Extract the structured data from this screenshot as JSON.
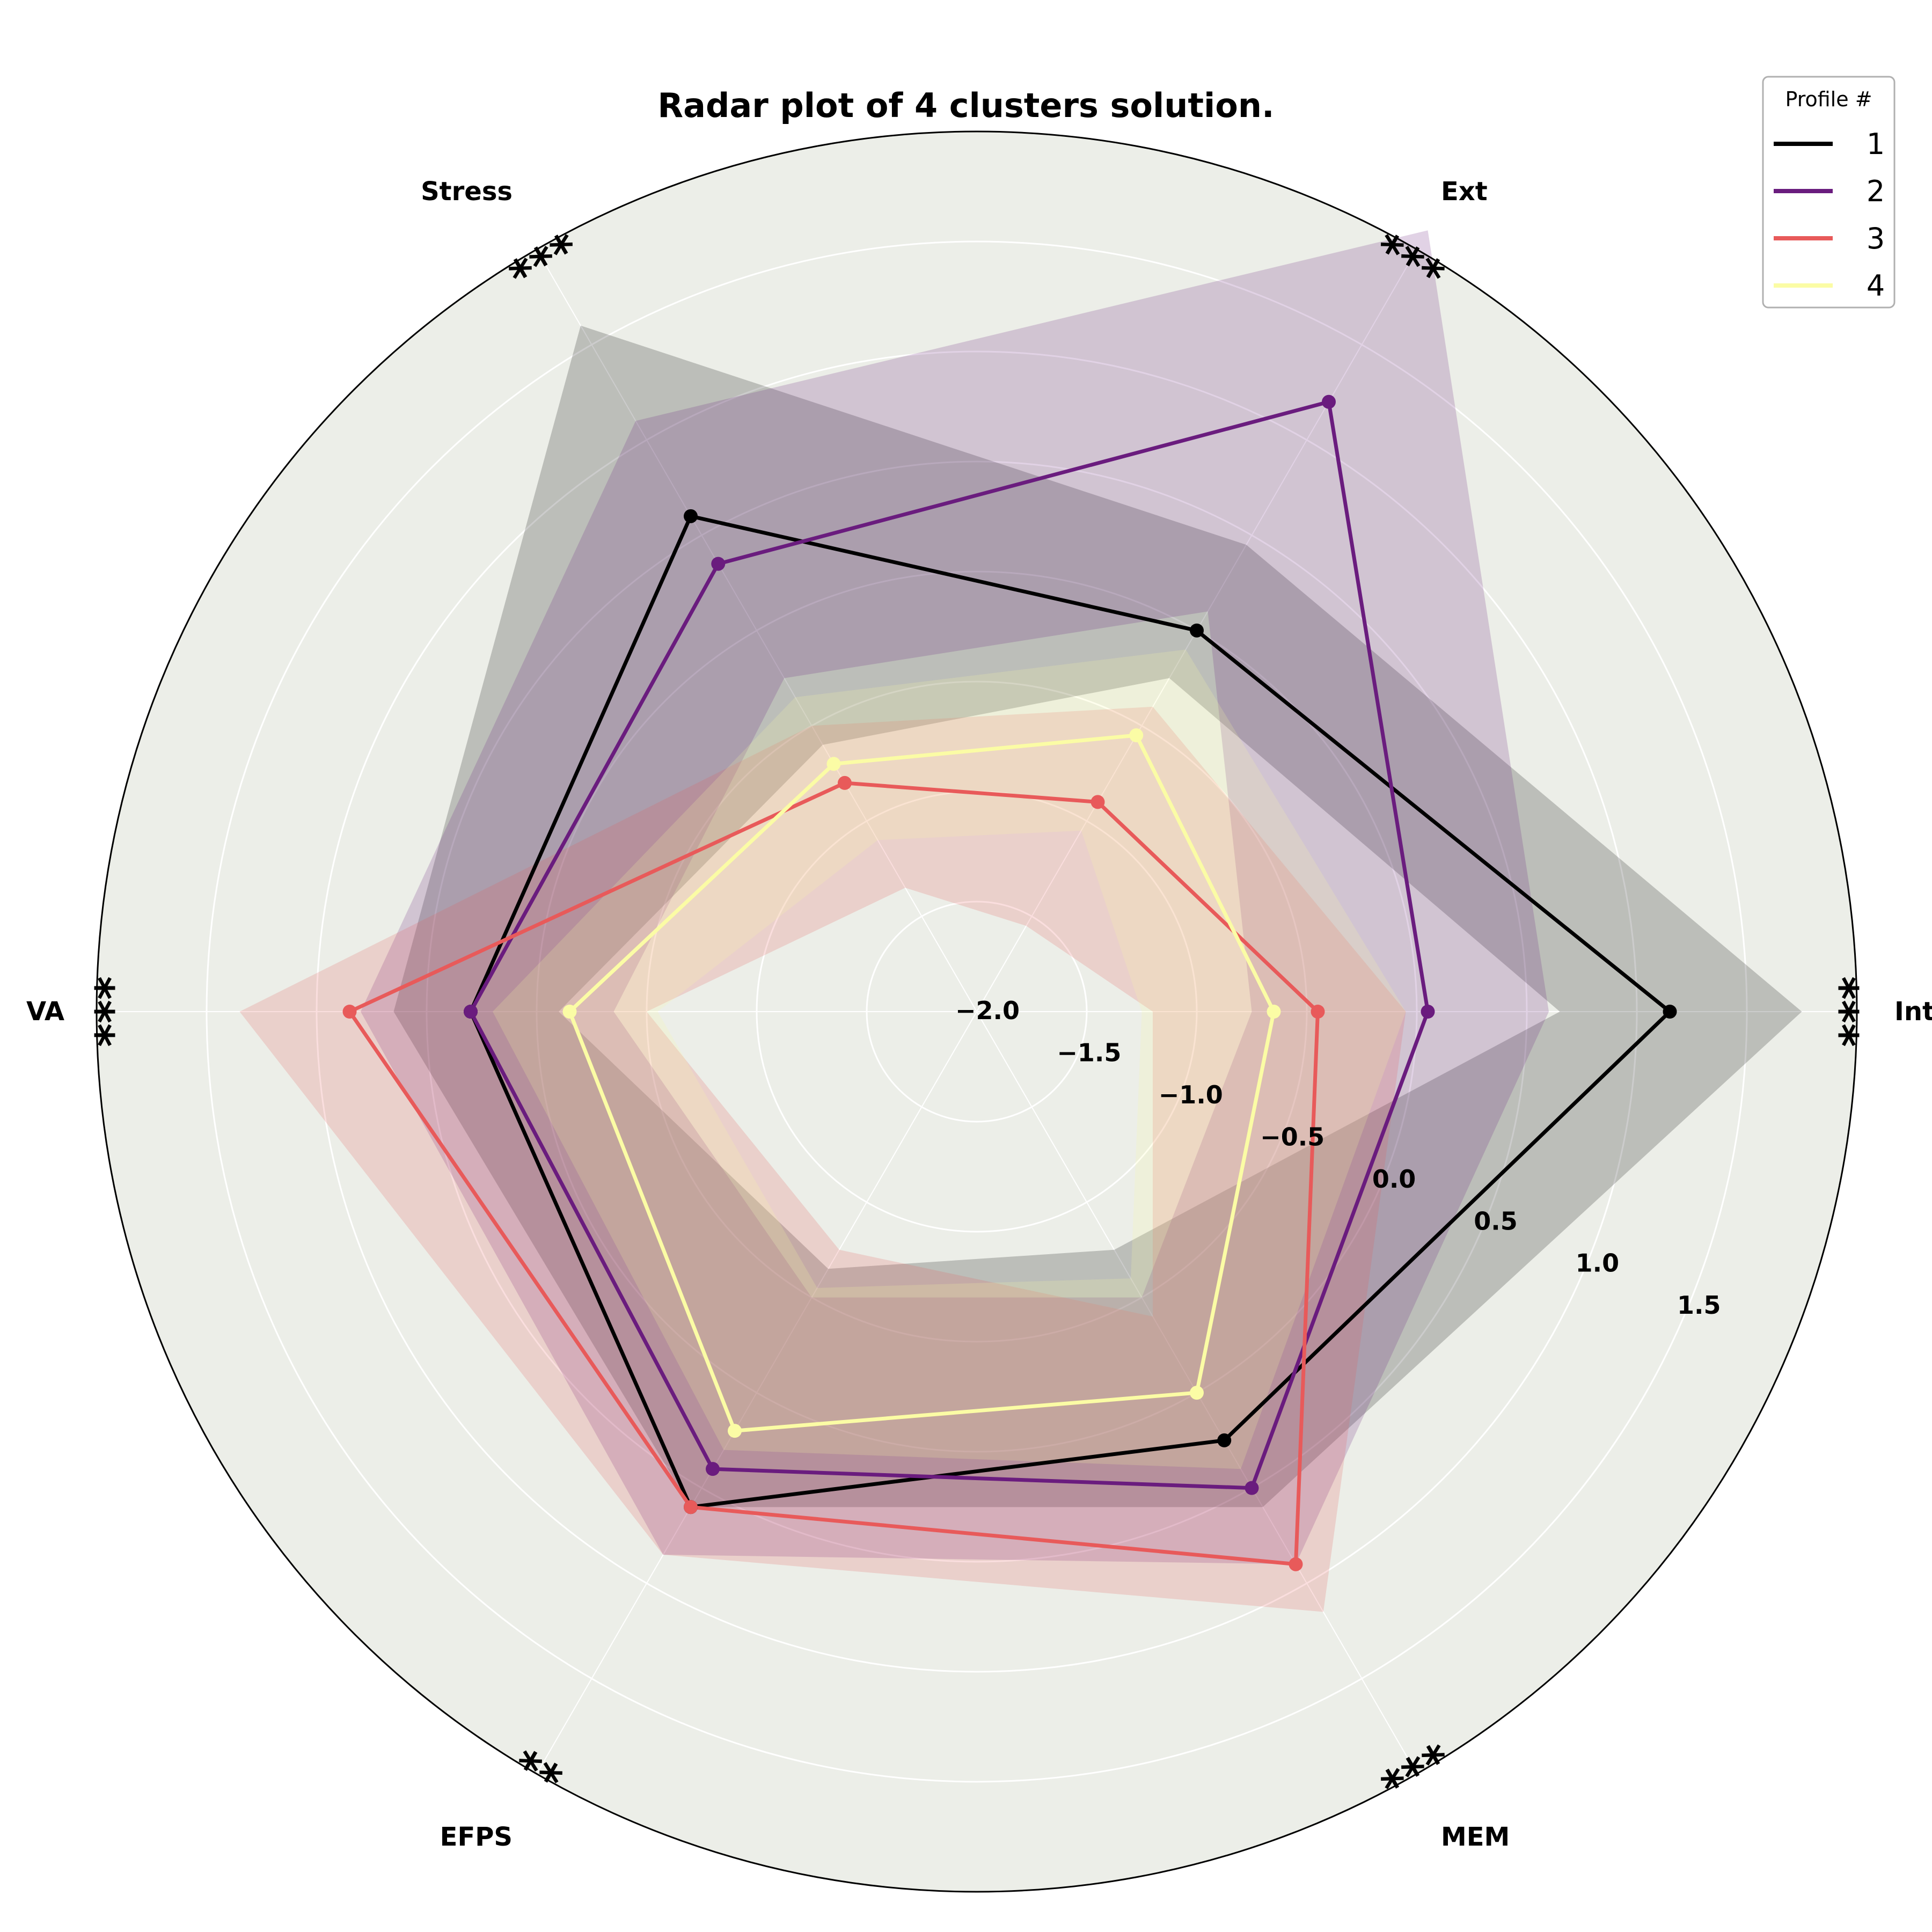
{
  "chart_data": {
    "type": "radar",
    "title": "Radar plot of 4 clusters solution.",
    "axes": [
      "Int",
      "Ext",
      "Stress",
      "VA",
      "EFPS",
      "MEM"
    ],
    "significance": [
      "***",
      "***",
      "***",
      "***",
      "**",
      "***"
    ],
    "r_ticks": [
      "−2.0",
      "−1.5",
      "−1.0",
      "−0.5",
      "0.0",
      "0.5",
      "1.0",
      "1.5"
    ],
    "r_tick_values": [
      -2.0,
      -1.5,
      -1.0,
      -0.5,
      0.0,
      0.5,
      1.0,
      1.5
    ],
    "rlim": [
      -2.0,
      2.0
    ],
    "grid": true,
    "legend": {
      "title": "Profile #",
      "position": "top-right"
    },
    "background_color": "#eceee8",
    "series": [
      {
        "name": "1",
        "color": "#000000",
        "values": [
          1.15,
          0.0,
          0.6,
          0.3,
          0.6,
          0.25
        ],
        "lower": [
          0.65,
          -0.25,
          -0.6,
          -0.1,
          -0.65,
          -0.75
        ],
        "upper": [
          1.75,
          0.45,
          1.6,
          0.65,
          0.6,
          0.6
        ]
      },
      {
        "name": "2",
        "color": "#6a1c7e",
        "values": [
          0.05,
          1.2,
          0.35,
          0.3,
          0.4,
          0.5
        ],
        "lower": [
          -0.75,
          0.1,
          -0.25,
          -0.35,
          -0.5,
          -0.5
        ],
        "upper": [
          0.6,
          2.1,
          1.1,
          0.8,
          0.85,
          0.9
        ]
      },
      {
        "name": "3",
        "color": "#e85a5a",
        "values": [
          -0.45,
          -0.9,
          -0.8,
          0.85,
          0.6,
          0.9
        ],
        "lower": [
          -1.2,
          -1.55,
          -1.35,
          -0.5,
          -0.75,
          -0.4
        ],
        "upper": [
          -0.05,
          -0.4,
          -0.5,
          1.35,
          0.85,
          1.15
        ]
      },
      {
        "name": "4",
        "color": "#fbfca5",
        "values": [
          -0.65,
          -0.55,
          -0.7,
          -0.15,
          0.2,
          0.0
        ],
        "lower": [
          -1.25,
          -1.05,
          -1.1,
          -0.55,
          -0.55,
          -0.6
        ],
        "upper": [
          -0.05,
          -0.1,
          -0.35,
          0.2,
          0.3,
          0.4
        ]
      }
    ]
  }
}
